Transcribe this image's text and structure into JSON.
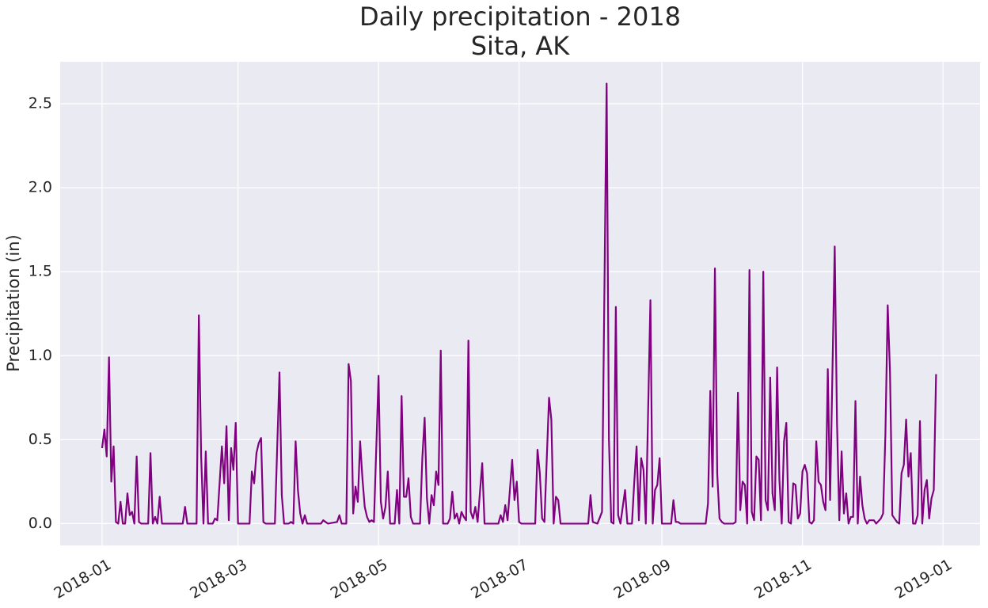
{
  "chart_data": {
    "type": "line",
    "title": "Daily precipitation - 2018",
    "subtitle": "Sita, AK",
    "y_label": "Precipitation (in)",
    "color": "#800080",
    "grid": true,
    "xlim": [
      -18.2,
      381.1
    ],
    "ylim": [
      -0.13,
      2.75
    ],
    "xticks": [
      {
        "value": 0,
        "label": "2018-01"
      },
      {
        "value": 59,
        "label": "2018-03"
      },
      {
        "value": 120,
        "label": "2018-05"
      },
      {
        "value": 181,
        "label": "2018-07"
      },
      {
        "value": 243,
        "label": "2018-09"
      },
      {
        "value": 304,
        "label": "2018-11"
      },
      {
        "value": 365,
        "label": "2019-01"
      }
    ],
    "yticks": [
      {
        "value": 0,
        "label": "0.0"
      },
      0.5,
      {
        "value": 1,
        "label": "1.0"
      },
      1.5,
      {
        "value": 2,
        "label": "2.0"
      },
      2.5
    ],
    "x": [
      0,
      1,
      2,
      3,
      4,
      5,
      6,
      7,
      8,
      9,
      10,
      11,
      12,
      13,
      14,
      15,
      16,
      17,
      20,
      21,
      22,
      23,
      24,
      25,
      26,
      35,
      36,
      37,
      41,
      42,
      43,
      44,
      45,
      46,
      48,
      49,
      50,
      52,
      53,
      54,
      55,
      56,
      57,
      58,
      59,
      64,
      65,
      66,
      67,
      68,
      69,
      70,
      71,
      75,
      77,
      78,
      79,
      81,
      82,
      83,
      84,
      85,
      86,
      87,
      88,
      89,
      95,
      96,
      97,
      98,
      102,
      103,
      104,
      106,
      107,
      108,
      109,
      110,
      111,
      112,
      113,
      114,
      115,
      116,
      117,
      118,
      120,
      121,
      122,
      123,
      124,
      125,
      127,
      128,
      129,
      130,
      131,
      132,
      133,
      134,
      135,
      138,
      139,
      140,
      141,
      142,
      143,
      144,
      145,
      146,
      147,
      148,
      150,
      151,
      152,
      153,
      154,
      155,
      156,
      157,
      158,
      159,
      160,
      161,
      162,
      163,
      165,
      166,
      172,
      173,
      174,
      175,
      176,
      178,
      179,
      180,
      181,
      182,
      188,
      189,
      190,
      191,
      192,
      194,
      195,
      196,
      197,
      198,
      199,
      211,
      212,
      213,
      215,
      217,
      219,
      220,
      221,
      222,
      223,
      224,
      225,
      227,
      228,
      230,
      231,
      232,
      233,
      234,
      235,
      236,
      238,
      239,
      240,
      241,
      242,
      243,
      247,
      248,
      249,
      250,
      251,
      262,
      263,
      264,
      265,
      266,
      267,
      268,
      269,
      270,
      274,
      275,
      276,
      277,
      278,
      279,
      280,
      281,
      282,
      283,
      284,
      285,
      286,
      287,
      288,
      289,
      290,
      291,
      292,
      293,
      294,
      295,
      296,
      297,
      298,
      299,
      300,
      301,
      302,
      303,
      304,
      305,
      306,
      307,
      308,
      309,
      310,
      311,
      312,
      313,
      314,
      315,
      316,
      318,
      319,
      320,
      321,
      322,
      323,
      324,
      325,
      326,
      327,
      328,
      329,
      330,
      331,
      332,
      333,
      334,
      335,
      336,
      338,
      339,
      340,
      341,
      342,
      343,
      344,
      345,
      346,
      347,
      348,
      349,
      350,
      351,
      352,
      353,
      354,
      355,
      356,
      357,
      358,
      359,
      360,
      361,
      362
    ],
    "values": [
      0.45,
      0.56,
      0.4,
      0.99,
      0.25,
      0.46,
      0.01,
      0,
      0.13,
      0,
      0,
      0.18,
      0.05,
      0.07,
      0,
      0.4,
      0.01,
      0,
      0,
      0.42,
      0,
      0.04,
      0,
      0.16,
      0,
      0,
      0.1,
      0,
      0,
      1.24,
      0.4,
      0,
      0.43,
      0,
      0,
      0.03,
      0.02,
      0.46,
      0.24,
      0.58,
      0.02,
      0.45,
      0.32,
      0.6,
      0,
      0,
      0.31,
      0.24,
      0.42,
      0.48,
      0.51,
      0.01,
      0,
      0,
      0.9,
      0.17,
      0,
      0,
      0.01,
      0,
      0.49,
      0.2,
      0.06,
      0,
      0.05,
      0,
      0,
      0.02,
      0.01,
      0,
      0.01,
      0.05,
      0,
      0,
      0.95,
      0.85,
      0.06,
      0.22,
      0.13,
      0.49,
      0.27,
      0.1,
      0.04,
      0.01,
      0.02,
      0.01,
      0.88,
      0.13,
      0.03,
      0.1,
      0.31,
      0,
      0,
      0.2,
      0,
      0.76,
      0.16,
      0.16,
      0.27,
      0.04,
      0,
      0,
      0.39,
      0.63,
      0.15,
      0,
      0.17,
      0.11,
      0.31,
      0.23,
      1.03,
      0,
      0,
      0.03,
      0.19,
      0.03,
      0.06,
      0,
      0.07,
      0.04,
      0.02,
      1.09,
      0.07,
      0.03,
      0.1,
      0.01,
      0.36,
      0,
      0,
      0.05,
      0.01,
      0.11,
      0.02,
      0.38,
      0.14,
      0.25,
      0.01,
      0,
      0,
      0.44,
      0.3,
      0.03,
      0.01,
      0.75,
      0.62,
      0,
      0.16,
      0.14,
      0,
      0,
      0.17,
      0.01,
      0,
      0.07,
      2.62,
      0.5,
      0.01,
      0,
      1.29,
      0.05,
      0,
      0.2,
      0,
      0,
      0.25,
      0.46,
      0.02,
      0.39,
      0.32,
      0,
      1.33,
      0,
      0.2,
      0.23,
      0.39,
      0,
      0,
      0.14,
      0.01,
      0.01,
      0,
      0,
      0.12,
      0.79,
      0.22,
      1.52,
      0.3,
      0.03,
      0.01,
      0,
      0,
      0.01,
      0.78,
      0.08,
      0.25,
      0.23,
      0,
      1.51,
      0.07,
      0.02,
      0.4,
      0.38,
      0.02,
      1.5,
      0.14,
      0.08,
      0.87,
      0.18,
      0.08,
      0.93,
      0.26,
      0,
      0.49,
      0.6,
      0.01,
      0,
      0.24,
      0.23,
      0.03,
      0.06,
      0.31,
      0.35,
      0.3,
      0.01,
      0,
      0.02,
      0.49,
      0.25,
      0.23,
      0.13,
      0.08,
      0.92,
      0.14,
      1.65,
      0.6,
      0.02,
      0.43,
      0.06,
      0.18,
      0,
      0.04,
      0.04,
      0.73,
      0,
      0.28,
      0.11,
      0.03,
      0,
      0.02,
      0.02,
      0.02,
      0,
      0.03,
      0.06,
      0.53,
      1.3,
      0.9,
      0.05,
      0.03,
      0.01,
      0,
      0.3,
      0.35,
      0.62,
      0.28,
      0.42,
      0,
      0,
      0.05,
      0.61,
      0,
      0.2,
      0.26,
      0.03,
      0.15,
      0.2,
      0.89
    ]
  }
}
